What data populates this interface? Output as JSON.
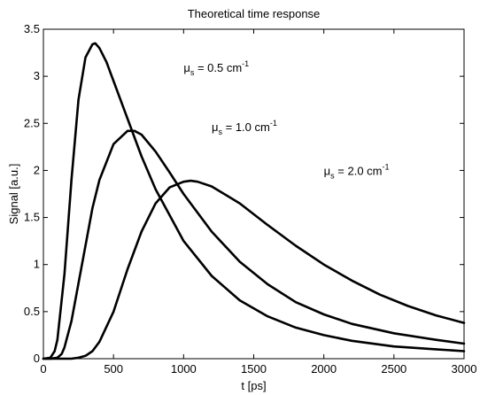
{
  "chart_data": {
    "type": "line",
    "title": "Theoretical time response",
    "xlabel": "t [ps]",
    "ylabel": "Signal [a.u.]",
    "xlim": [
      0,
      3000
    ],
    "ylim": [
      0,
      3.5
    ],
    "xticks": [
      0,
      500,
      1000,
      1500,
      2000,
      2500,
      3000
    ],
    "yticks": [
      0,
      0.5,
      1,
      1.5,
      2,
      2.5,
      3,
      3.5
    ],
    "xtick_labels": [
      "0",
      "500",
      "1000",
      "1500",
      "2000",
      "2500",
      "3000"
    ],
    "ytick_labels": [
      "0",
      "0.5",
      "1",
      "1.5",
      "2",
      "2.5",
      "3",
      "3.5"
    ],
    "grid": false,
    "series": [
      {
        "x": [
          0,
          50,
          80,
          100,
          150,
          200,
          250,
          300,
          350,
          370,
          400,
          450,
          500,
          600,
          700,
          800,
          1000,
          1200,
          1400,
          1600,
          1800,
          2000,
          2200,
          2500,
          2800,
          3000
        ],
        "y": [
          0,
          0.01,
          0.08,
          0.2,
          0.9,
          1.9,
          2.75,
          3.2,
          3.34,
          3.35,
          3.3,
          3.15,
          2.95,
          2.55,
          2.15,
          1.8,
          1.25,
          0.88,
          0.62,
          0.45,
          0.33,
          0.25,
          0.19,
          0.13,
          0.1,
          0.08
        ]
      },
      {
        "x": [
          0,
          50,
          100,
          130,
          150,
          200,
          250,
          300,
          350,
          400,
          500,
          600,
          650,
          700,
          800,
          900,
          1000,
          1200,
          1400,
          1600,
          1800,
          2000,
          2200,
          2500,
          2800,
          3000
        ],
        "y": [
          0,
          0,
          0.01,
          0.05,
          0.12,
          0.4,
          0.8,
          1.2,
          1.6,
          1.9,
          2.28,
          2.42,
          2.42,
          2.38,
          2.2,
          1.98,
          1.75,
          1.35,
          1.03,
          0.79,
          0.6,
          0.47,
          0.37,
          0.27,
          0.2,
          0.16
        ]
      },
      {
        "x": [
          0,
          100,
          200,
          250,
          300,
          350,
          400,
          500,
          600,
          700,
          800,
          900,
          1000,
          1050,
          1100,
          1200,
          1400,
          1600,
          1800,
          2000,
          2200,
          2400,
          2600,
          2800,
          3000
        ],
        "y": [
          0,
          0,
          0,
          0.01,
          0.03,
          0.08,
          0.18,
          0.5,
          0.95,
          1.35,
          1.65,
          1.82,
          1.88,
          1.89,
          1.88,
          1.83,
          1.65,
          1.42,
          1.2,
          1.0,
          0.83,
          0.68,
          0.56,
          0.46,
          0.38
        ]
      }
    ],
    "annotations": [
      {
        "base": "μ",
        "sub": "s",
        "text": " = 0.5 cm",
        "sup": "-1",
        "x": 1000,
        "y": 3.05
      },
      {
        "base": "μ",
        "sub": "s",
        "text": " = 1.0 cm",
        "sup": "-1",
        "x": 1200,
        "y": 2.42
      },
      {
        "base": "μ",
        "sub": "s",
        "text": " = 2.0 cm",
        "sup": "-1",
        "x": 2000,
        "y": 1.95
      }
    ]
  }
}
